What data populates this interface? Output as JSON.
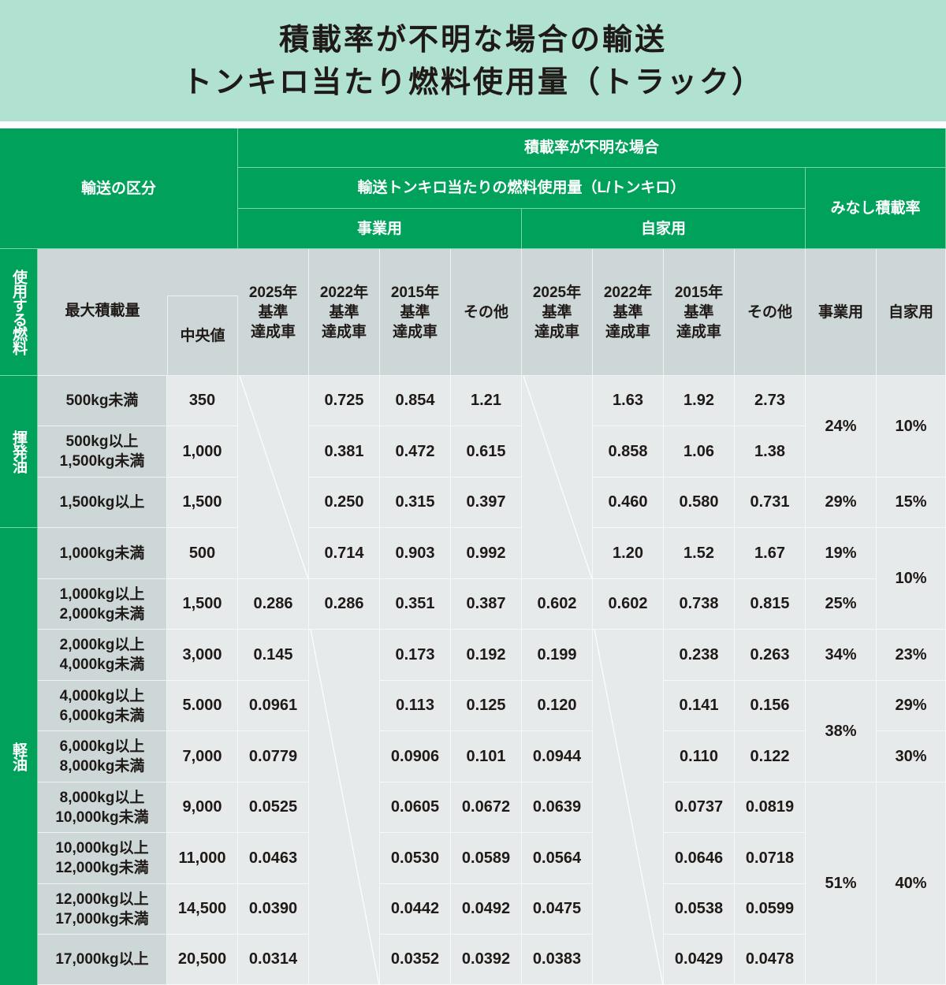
{
  "title": {
    "line1": "積載率が不明な場合の輸送",
    "line2": "トンキロ当たり燃料使用量（トラック）"
  },
  "colors": {
    "title_band": "#b1e2d1",
    "header_green": "#00a15b",
    "subheader_gray": "#cdd7d7",
    "cell_gray": "#e6eaea",
    "text": "#1f1a17"
  },
  "header": {
    "transport_category": "輸送の区分",
    "unknown_load_rate": "積載率が不明な場合",
    "fuel_per_tonkm": "輸送トンキロ当たりの燃料使用量（L/トンキロ）",
    "commercial": "事業用",
    "private": "自家用",
    "assumed_load_rate": "みなし積載率",
    "fuel_used": "使用する燃料",
    "max_load": "最大積載量",
    "median": "中央値",
    "std_2025": "2025年\n基準\n達成車",
    "std_2022": "2022年\n基準\n達成車",
    "std_2015": "2015年\n基準\n達成車",
    "other": "その他",
    "rate_commercial": "事業用",
    "rate_private": "自家用"
  },
  "fuels": {
    "gasoline": "揮発油",
    "diesel": "軽油"
  },
  "rows": [
    {
      "load": "500kg未満",
      "median": "350",
      "c2025": "",
      "c2022": "0.725",
      "c2015": "0.854",
      "cother": "1.21",
      "p2025": "",
      "p2022": "1.63",
      "p2015": "1.92",
      "pother": "2.73"
    },
    {
      "load": "500kg以上\n1,500kg未満",
      "median": "1,000",
      "c2025": "",
      "c2022": "0.381",
      "c2015": "0.472",
      "cother": "0.615",
      "p2025": "",
      "p2022": "0.858",
      "p2015": "1.06",
      "pother": "1.38"
    },
    {
      "load": "1,500kg以上",
      "median": "1,500",
      "c2025": "",
      "c2022": "0.250",
      "c2015": "0.315",
      "cother": "0.397",
      "p2025": "",
      "p2022": "0.460",
      "p2015": "0.580",
      "pother": "0.731"
    },
    {
      "load": "1,000kg未満",
      "median": "500",
      "c2025": "",
      "c2022": "0.714",
      "c2015": "0.903",
      "cother": "0.992",
      "p2025": "",
      "p2022": "1.20",
      "p2015": "1.52",
      "pother": "1.67"
    },
    {
      "load": "1,000kg以上\n2,000kg未満",
      "median": "1,500",
      "c2025": "0.286",
      "c2022": "0.286",
      "c2015": "0.351",
      "cother": "0.387",
      "p2025": "0.602",
      "p2022": "0.602",
      "p2015": "0.738",
      "pother": "0.815"
    },
    {
      "load": "2,000kg以上\n4,000kg未満",
      "median": "3,000",
      "c2025": "0.145",
      "c2022": "",
      "c2015": "0.173",
      "cother": "0.192",
      "p2025": "0.199",
      "p2022": "",
      "p2015": "0.238",
      "pother": "0.263"
    },
    {
      "load": "4,000kg以上\n6,000kg未満",
      "median": "5.000",
      "c2025": "0.0961",
      "c2022": "",
      "c2015": "0.113",
      "cother": "0.125",
      "p2025": "0.120",
      "p2022": "",
      "p2015": "0.141",
      "pother": "0.156"
    },
    {
      "load": "6,000kg以上\n8,000kg未満",
      "median": "7,000",
      "c2025": "0.0779",
      "c2022": "",
      "c2015": "0.0906",
      "cother": "0.101",
      "p2025": "0.0944",
      "p2022": "",
      "p2015": "0.110",
      "pother": "0.122"
    },
    {
      "load": "8,000kg以上\n10,000kg未満",
      "median": "9,000",
      "c2025": "0.0525",
      "c2022": "",
      "c2015": "0.0605",
      "cother": "0.0672",
      "p2025": "0.0639",
      "p2022": "",
      "p2015": "0.0737",
      "pother": "0.0819"
    },
    {
      "load": "10,000kg以上\n12,000kg未満",
      "median": "11,000",
      "c2025": "0.0463",
      "c2022": "",
      "c2015": "0.0530",
      "cother": "0.0589",
      "p2025": "0.0564",
      "p2022": "",
      "p2015": "0.0646",
      "pother": "0.0718"
    },
    {
      "load": "12,000kg以上\n17,000kg未満",
      "median": "14,500",
      "c2025": "0.0390",
      "c2022": "",
      "c2015": "0.0442",
      "cother": "0.0492",
      "p2025": "0.0475",
      "p2022": "",
      "p2015": "0.0538",
      "pother": "0.0599"
    },
    {
      "load": "17,000kg以上",
      "median": "20,500",
      "c2025": "0.0314",
      "c2022": "",
      "c2015": "0.0352",
      "cother": "0.0392",
      "p2025": "0.0383",
      "p2022": "",
      "p2015": "0.0429",
      "pother": "0.0478"
    }
  ],
  "load_rates": {
    "commercial": [
      {
        "label": "24%",
        "rows": [
          0,
          1
        ]
      },
      {
        "label": "29%",
        "rows": [
          2
        ]
      },
      {
        "label": "19%",
        "rows": [
          3
        ]
      },
      {
        "label": "25%",
        "rows": [
          4
        ]
      },
      {
        "label": "34%",
        "rows": [
          5
        ]
      },
      {
        "label": "38%",
        "rows": [
          6,
          7
        ]
      },
      {
        "label": "51%",
        "rows": [
          8,
          9,
          10,
          11
        ]
      }
    ],
    "private": [
      {
        "label": "10%",
        "rows": [
          0,
          1
        ]
      },
      {
        "label": "15%",
        "rows": [
          2
        ]
      },
      {
        "label": "10%",
        "rows": [
          3,
          4
        ]
      },
      {
        "label": "23%",
        "rows": [
          5
        ]
      },
      {
        "label": "29%",
        "rows": [
          6
        ]
      },
      {
        "label": "30%",
        "rows": [
          7
        ]
      },
      {
        "label": "40%",
        "rows": [
          8,
          9,
          10,
          11
        ]
      }
    ]
  }
}
